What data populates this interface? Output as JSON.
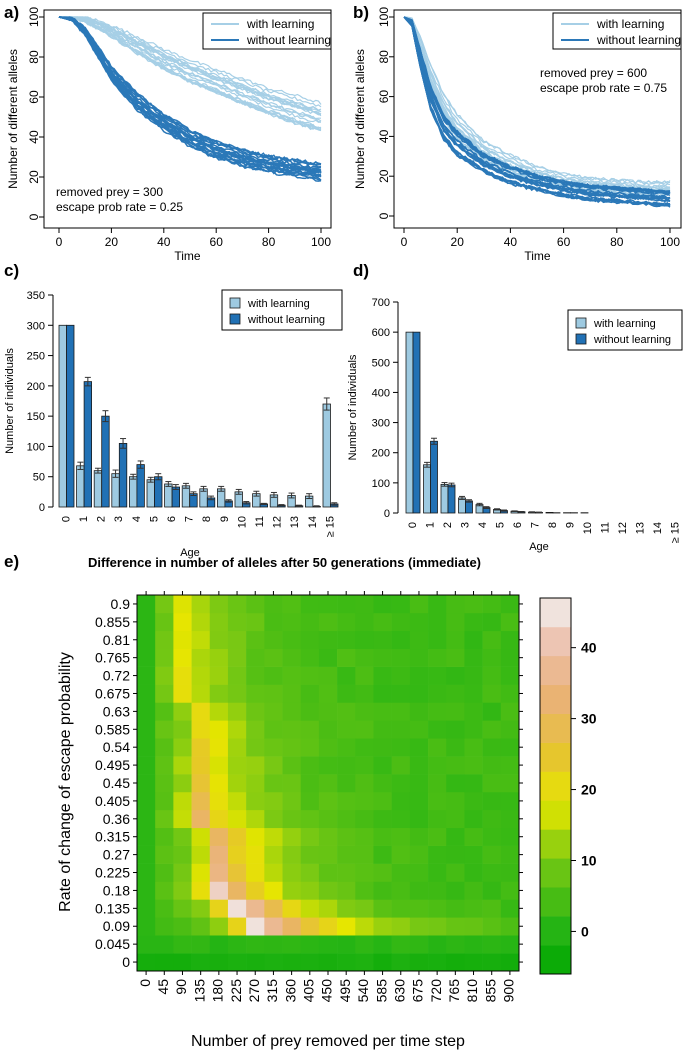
{
  "colors": {
    "light": "#a6cfe6",
    "dark": "#2b78b8",
    "light_bar": "#9ecae1",
    "dark_bar": "#2171b5",
    "axis": "#000000"
  },
  "chart_data": [
    {
      "id": "a",
      "panel_label": "a)",
      "type": "line",
      "xlabel": "Time",
      "ylabel": "Number of different alleles",
      "xlim": [
        0,
        100
      ],
      "ylim": [
        0,
        100
      ],
      "xticks": [
        "0",
        "20",
        "40",
        "60",
        "80",
        "100"
      ],
      "yticks": [
        "0",
        "20",
        "40",
        "60",
        "80",
        "100"
      ],
      "legend": [
        "with learning",
        "without learning"
      ],
      "legend_position": "top-right",
      "annotation": [
        "removed prey = 300",
        "escape prob rate = 0.25"
      ],
      "series_summary": [
        {
          "name": "with learning",
          "replicates": 20,
          "x": [
            0,
            5,
            10,
            20,
            30,
            40,
            50,
            60,
            70,
            80,
            90,
            100
          ],
          "mean": [
            100,
            100,
            99,
            93,
            86,
            79,
            73,
            68,
            63,
            58,
            54,
            50
          ],
          "spread": [
            0,
            0,
            1,
            2,
            3,
            3.5,
            4,
            4,
            4.5,
            4.5,
            5,
            5
          ]
        },
        {
          "name": "without learning",
          "replicates": 20,
          "x": [
            0,
            5,
            10,
            20,
            30,
            40,
            50,
            60,
            70,
            80,
            90,
            100
          ],
          "mean": [
            100,
            99,
            93,
            72,
            58,
            48,
            40,
            34,
            30,
            27,
            25,
            23
          ],
          "spread": [
            0,
            0.5,
            1.5,
            3,
            3.5,
            3.5,
            3.5,
            3.5,
            3.5,
            3.5,
            3.5,
            3.5
          ]
        }
      ]
    },
    {
      "id": "b",
      "panel_label": "b)",
      "type": "line",
      "xlabel": "Time",
      "ylabel": "Number of different alleles",
      "xlim": [
        0,
        100
      ],
      "ylim": [
        0,
        100
      ],
      "xticks": [
        "0",
        "20",
        "40",
        "60",
        "80",
        "100"
      ],
      "yticks": [
        "0",
        "20",
        "40",
        "60",
        "80",
        "100"
      ],
      "legend": [
        "with learning",
        "without learning"
      ],
      "legend_position": "top-right",
      "annotation": [
        "removed prey = 600",
        "escape prob rate = 0.75"
      ],
      "series_summary": [
        {
          "name": "with learning",
          "replicates": 20,
          "x": [
            0,
            3,
            6,
            10,
            15,
            20,
            30,
            40,
            50,
            60,
            70,
            80,
            90,
            100
          ],
          "mean": [
            100,
            98,
            86,
            70,
            55,
            45,
            33,
            26,
            21,
            18,
            16,
            15,
            14,
            14
          ],
          "spread": [
            0,
            1,
            3,
            4,
            4,
            4,
            3,
            3,
            2.5,
            2,
            2,
            2,
            2,
            2
          ]
        },
        {
          "name": "without learning",
          "replicates": 20,
          "x": [
            0,
            3,
            6,
            10,
            15,
            20,
            30,
            40,
            50,
            60,
            70,
            80,
            90,
            100
          ],
          "mean": [
            100,
            97,
            80,
            60,
            45,
            37,
            27,
            21,
            17,
            14,
            12,
            11,
            10,
            9
          ],
          "spread": [
            0,
            1,
            3,
            4,
            4,
            4,
            3,
            3,
            2.5,
            2.5,
            2.5,
            2.5,
            2.5,
            2.5
          ]
        }
      ]
    },
    {
      "id": "c",
      "panel_label": "c)",
      "type": "bar",
      "xlabel": "Age",
      "ylabel": "Number of individuals",
      "ylim": [
        0,
        350
      ],
      "yticks": [
        "0",
        "50",
        "100",
        "150",
        "200",
        "250",
        "300",
        "350"
      ],
      "categories": [
        "0",
        "1",
        "2",
        "3",
        "4",
        "5",
        "6",
        "7",
        "8",
        "9",
        "10",
        "11",
        "12",
        "13",
        "14",
        "≥ 15"
      ],
      "legend_position": "top-right",
      "series": [
        {
          "name": "with learning",
          "values": [
            300,
            68,
            60,
            55,
            50,
            45,
            38,
            35,
            30,
            30,
            25,
            22,
            20,
            19,
            18,
            170
          ],
          "errors": [
            0,
            6,
            4,
            6,
            4,
            4,
            4,
            4,
            4,
            4,
            4,
            4,
            4,
            4,
            4,
            10
          ]
        },
        {
          "name": "without learning",
          "values": [
            300,
            207,
            150,
            105,
            70,
            50,
            33,
            22,
            15,
            10,
            7,
            5,
            3,
            2,
            1,
            5
          ],
          "errors": [
            0,
            7,
            9,
            8,
            6,
            5,
            4,
            3,
            3,
            2,
            2,
            1,
            1,
            1,
            1,
            2
          ]
        }
      ]
    },
    {
      "id": "d",
      "panel_label": "d)",
      "type": "bar",
      "xlabel": "Age",
      "ylabel": "Number of individuals",
      "ylim": [
        0,
        700
      ],
      "yticks": [
        "0",
        "100",
        "200",
        "300",
        "400",
        "500",
        "600",
        "700"
      ],
      "categories": [
        "0",
        "1",
        "2",
        "3",
        "4",
        "5",
        "6",
        "7",
        "8",
        "9",
        "10",
        "11",
        "12",
        "13",
        "14",
        "≥ 15"
      ],
      "legend_position": "top-right",
      "series": [
        {
          "name": "with learning",
          "values": [
            600,
            160,
            95,
            50,
            28,
            12,
            6,
            3,
            2,
            1,
            1,
            0,
            0,
            0,
            0,
            0
          ],
          "errors": [
            0,
            8,
            6,
            5,
            4,
            2,
            1,
            1,
            0,
            0,
            0,
            0,
            0,
            0,
            0,
            0
          ]
        },
        {
          "name": "without learning",
          "values": [
            600,
            238,
            93,
            40,
            18,
            8,
            4,
            2,
            1,
            1,
            0,
            0,
            0,
            0,
            0,
            0
          ],
          "errors": [
            0,
            10,
            6,
            4,
            3,
            2,
            1,
            1,
            0,
            0,
            0,
            0,
            0,
            0,
            0,
            0
          ]
        }
      ]
    },
    {
      "id": "e",
      "panel_label": "e)",
      "type": "heatmap",
      "title": "Difference in number of alleles after 50 generations (immediate)",
      "xlabel": "Number of prey removed per time step",
      "ylabel": "Rate of change of escape probability",
      "x": [
        "0",
        "45",
        "90",
        "135",
        "180",
        "225",
        "270",
        "315",
        "360",
        "405",
        "450",
        "495",
        "540",
        "585",
        "630",
        "675",
        "720",
        "765",
        "810",
        "855",
        "900"
      ],
      "y": [
        "0",
        "0.045",
        "0.09",
        "0.135",
        "0.18",
        "0.225",
        "0.27",
        "0.315",
        "0.36",
        "0.405",
        "0.45",
        "0.495",
        "0.54",
        "0.585",
        "0.63",
        "0.675",
        "0.72",
        "0.765",
        "0.81",
        "0.855",
        "0.9"
      ],
      "zlim": [
        -6,
        47
      ],
      "colorbar_ticks": [
        "0",
        "10",
        "20",
        "30",
        "40"
      ],
      "z_model": "approximate: per-row peak magnitude along x; rows 0 (value ~ -2) and 0.045 (value ~ 1) near zero",
      "row_peaks": [
        {
          "y": "0.09",
          "peak_x": "270",
          "peak": 45,
          "width": 5
        },
        {
          "y": "0.135",
          "peak_x": "225",
          "peak": 46,
          "width": 3.5
        },
        {
          "y": "0.18",
          "peak_x": "180",
          "peak": 42,
          "width": 3
        },
        {
          "y": "0.225",
          "peak_x": "180",
          "peak": 35,
          "width": 3
        },
        {
          "y": "0.27",
          "peak_x": "180",
          "peak": 32,
          "width": 3
        },
        {
          "y": "0.315",
          "peak_x": "180",
          "peak": 32,
          "width": 3
        },
        {
          "y": "0.36",
          "peak_x": "135",
          "peak": 30,
          "width": 3
        },
        {
          "y": "0.405",
          "peak_x": "135",
          "peak": 28,
          "width": 3
        },
        {
          "y": "0.45",
          "peak_x": "135",
          "peak": 25,
          "width": 3
        },
        {
          "y": "0.495",
          "peak_x": "135",
          "peak": 24,
          "width": 3
        },
        {
          "y": "0.54",
          "peak_x": "135",
          "peak": 23,
          "width": 3
        },
        {
          "y": "0.585",
          "peak_x": "135",
          "peak": 22,
          "width": 3
        },
        {
          "y": "0.63",
          "peak_x": "135",
          "peak": 21,
          "width": 3
        },
        {
          "y": "0.675",
          "peak_x": "90",
          "peak": 20,
          "width": 3
        },
        {
          "y": "0.72",
          "peak_x": "90",
          "peak": 20,
          "width": 3
        },
        {
          "y": "0.765",
          "peak_x": "90",
          "peak": 19,
          "width": 3
        },
        {
          "y": "0.81",
          "peak_x": "90",
          "peak": 19,
          "width": 3
        },
        {
          "y": "0.855",
          "peak_x": "90",
          "peak": 18,
          "width": 3
        },
        {
          "y": "0.9",
          "peak_x": "90",
          "peak": 18,
          "width": 3
        }
      ]
    }
  ]
}
